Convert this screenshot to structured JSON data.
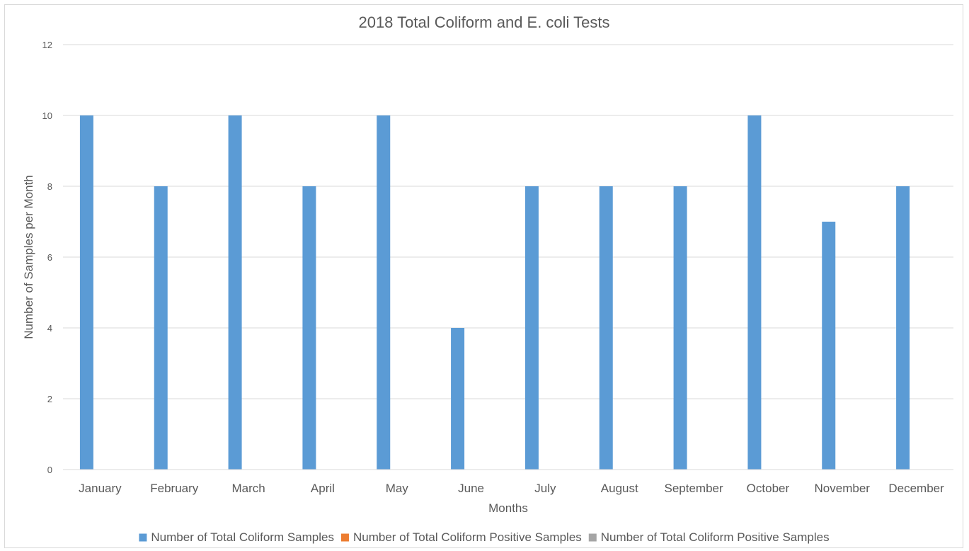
{
  "chart_data": {
    "type": "bar",
    "title": "2018 Total Coliform and E. coli Tests",
    "xlabel": "Months",
    "ylabel": "Number of Samples per Month",
    "categories": [
      "January",
      "February",
      "March",
      "April",
      "May",
      "June",
      "July",
      "August",
      "September",
      "October",
      "November",
      "December"
    ],
    "series": [
      {
        "name": "Number of Total Coliform Samples",
        "color": "#5b9bd5",
        "values": [
          10,
          8,
          10,
          8,
          10,
          4,
          8,
          8,
          8,
          10,
          7,
          8
        ]
      },
      {
        "name": "Number of Total Coliform Positive Samples",
        "color": "#ed7d31",
        "values": [
          0,
          0,
          0,
          0,
          0,
          0,
          0,
          0,
          0,
          0,
          0,
          0
        ]
      },
      {
        "name": "Number of Total Coliform Positive Samples",
        "color": "#a5a5a5",
        "values": [
          0,
          0,
          0,
          0,
          0,
          0,
          0,
          0,
          0,
          0,
          0,
          0
        ]
      }
    ],
    "ylim": [
      0,
      12
    ],
    "yticks": [
      0,
      2,
      4,
      6,
      8,
      10,
      12
    ],
    "grid": true,
    "legend_position": "bottom"
  }
}
